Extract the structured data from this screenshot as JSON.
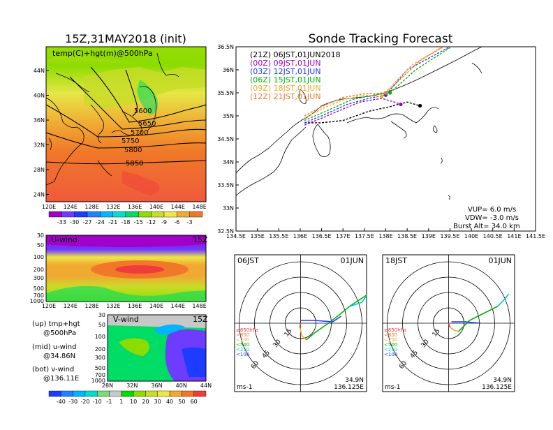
{
  "left_title": "15Z,31MAY2018 (init)",
  "right_title": "Sonde Tracking Forecast",
  "map500": {
    "label": "temp(C)+hgt(m)@500hPa",
    "lon_ticks": [
      "120E",
      "124E",
      "128E",
      "132E",
      "136E",
      "140E",
      "144E",
      "148E"
    ],
    "lat_ticks": [
      "44N",
      "40N",
      "36N",
      "32N",
      "28N",
      "24N"
    ],
    "contour_labels": [
      "5600",
      "5650",
      "5700",
      "5750",
      "5800",
      "5850"
    ],
    "colorbar_labels": [
      "-33",
      "-30",
      "-27",
      "-24",
      "-21",
      "-18",
      "-15",
      "-12",
      "-9",
      "-6",
      "-3"
    ],
    "colorbar_colors": [
      "#a000c8",
      "#6e3cff",
      "#1e3cff",
      "#1e82ff",
      "#00b4ff",
      "#00dcd2",
      "#00dc64",
      "#8cdc00",
      "#c8dc28",
      "#f0e646",
      "#f0aa32",
      "#f07828"
    ]
  },
  "uwind": {
    "label": "U-wind",
    "time": "15Z",
    "p_ticks": [
      "30",
      "50",
      "100",
      "200",
      "300",
      "500",
      "700",
      "1000"
    ],
    "lon_ticks": [
      "120E",
      "124E",
      "128E",
      "132E",
      "136E",
      "140E",
      "144E",
      "148E"
    ]
  },
  "vwind": {
    "label": "V-wind",
    "time": "15Z",
    "p_ticks": [
      "30",
      "50",
      "100",
      "200",
      "300",
      "500",
      "700",
      "1000"
    ],
    "lat_ticks": [
      "28N",
      "32N",
      "36N",
      "40N",
      "44N"
    ],
    "colorbar_labels": [
      "-40",
      "-30",
      "-20",
      "-10",
      "-1",
      "1",
      "10",
      "20",
      "30",
      "40",
      "50",
      "60"
    ],
    "colorbar_colors": [
      "#1e3cff",
      "#1e82ff",
      "#00b4ff",
      "#00dcd2",
      "#78dc78",
      "#c8c8c8",
      "#00dc00",
      "#8cdc00",
      "#c8dc28",
      "#f0e646",
      "#f0aa32",
      "#f07828",
      "#f03c3c"
    ]
  },
  "legend_notes": [
    {
      "label": "(up) tmp+hgt",
      "sub": "@500hPa"
    },
    {
      "label": "(mid) u-wind",
      "sub": "@34.86N"
    },
    {
      "label": "(bot) v-wind",
      "sub": "@136.11E"
    }
  ],
  "track": {
    "lon_ticks": [
      "134.5E",
      "135E",
      "135.5E",
      "136E",
      "136.5E",
      "137E",
      "137.5E",
      "138E",
      "138.5E",
      "139E",
      "139.5E",
      "140E",
      "140.5E",
      "141E",
      "141.5E"
    ],
    "lat_ticks": [
      "36.5N",
      "36N",
      "35.5N",
      "35N",
      "34.5N",
      "34N",
      "33.5N",
      "33N",
      "32.5N"
    ],
    "runs": [
      {
        "label": "(21Z)  06JST,01JUN2018",
        "color": "#000000"
      },
      {
        "label": "(00Z)  09JST,01JUN",
        "color": "#a000c8"
      },
      {
        "label": "(03Z)  12JST,01JUN",
        "color": "#1e3cff"
      },
      {
        "label": "(06Z)  15JST,01JUN",
        "color": "#00b400"
      },
      {
        "label": "(09Z)  18JST,01JUN",
        "color": "#f0aa32"
      },
      {
        "label": "(12Z)  21JST,01JUN",
        "color": "#f07828"
      }
    ],
    "vup": "VUP=  6.0  m/s",
    "vdw": "VDW= -3.0  m/s",
    "burst": "Burst Alt=  34.0  km"
  },
  "hodo_left": {
    "time_label": "06JST",
    "date_label": "01JUN",
    "ring_labels": [
      "15",
      "30",
      "45",
      "60"
    ],
    "unit": "ms-1",
    "lat": "34.9N",
    "lon": "136.125E"
  },
  "hodo_right": {
    "time_label": "18JST",
    "date_label": "01JUN",
    "ring_labels": [
      "15",
      "30",
      "45",
      "60"
    ],
    "unit": "ms-1",
    "lat": "34.9N",
    "lon": "136.125E"
  },
  "hodo_levels": [
    {
      "label": "≥850hPa",
      "color": "#f03c3c"
    },
    {
      "label": "<850",
      "color": "#f07828"
    },
    {
      "label": "<700",
      "color": "#f0aa32"
    },
    {
      "label": "<500",
      "color": "#00b400"
    },
    {
      "label": "<250",
      "color": "#00c8c8"
    },
    {
      "label": "<100",
      "color": "#1e3cff"
    }
  ]
}
